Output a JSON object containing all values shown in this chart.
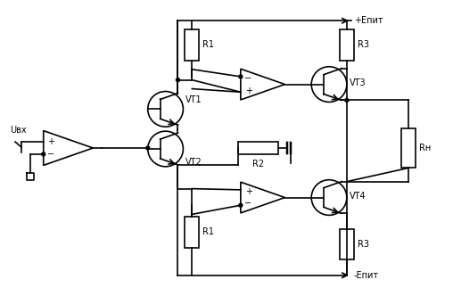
{
  "line_color": "#000000",
  "bg_color": "#ffffff",
  "lw": 1.2,
  "font_size": 7,
  "labels": {
    "Uvx": "Uвх",
    "VT1": "VT1",
    "VT2": "VT2",
    "VT3": "VT3",
    "VT4": "VT4",
    "R1_top": "R1",
    "R1_bot": "R1",
    "R2": "R2",
    "R3_top": "R3",
    "R3_bot": "R3",
    "Rn": "Rн",
    "Epit_pos": "+Eпит",
    "Epit_neg": "-Eпит"
  }
}
